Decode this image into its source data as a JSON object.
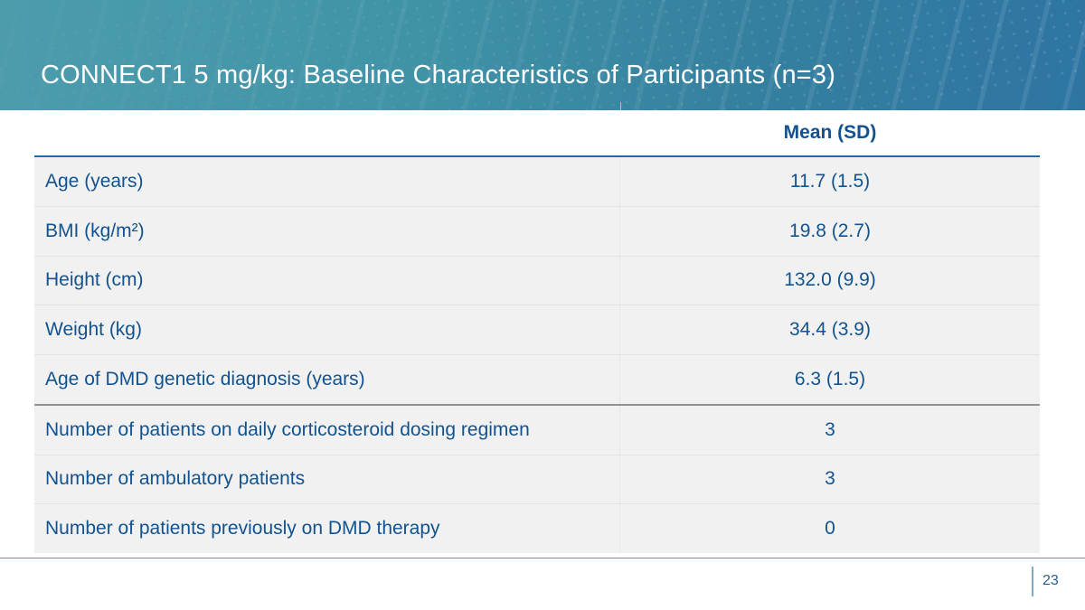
{
  "slide": {
    "title": "CONNECT1 5 mg/kg: Baseline Characteristics of Participants (n=3)",
    "page_number": "23"
  },
  "table": {
    "value_column_header": "Mean (SD)",
    "rows": [
      {
        "label": "Age (years)",
        "value": "11.7 (1.5)"
      },
      {
        "label": "BMI (kg/m²)",
        "value": "19.8 (2.7)"
      },
      {
        "label": "Height (cm)",
        "value": "132.0 (9.9)"
      },
      {
        "label": "Weight (kg)",
        "value": "34.4 (3.9)"
      },
      {
        "label": "Age of DMD genetic diagnosis (years)",
        "value": "6.3 (1.5)"
      },
      {
        "label": "Number of patients on daily corticosteroid dosing regimen",
        "value": "3"
      },
      {
        "label": "Number of ambulatory patients",
        "value": "3"
      },
      {
        "label": "Number of patients previously on DMD therapy",
        "value": "0"
      }
    ]
  },
  "colors": {
    "banner_teal_left": "#4c9cac",
    "banner_blue_right": "#2e75a3",
    "table_text_blue": "#12538f",
    "header_rule_blue": "#1d6ba2",
    "row_background": "#f1f1f2",
    "section_divider_gray": "#919191",
    "footer_rule_blue": "#6496b1",
    "title_text": "#ffffff"
  }
}
